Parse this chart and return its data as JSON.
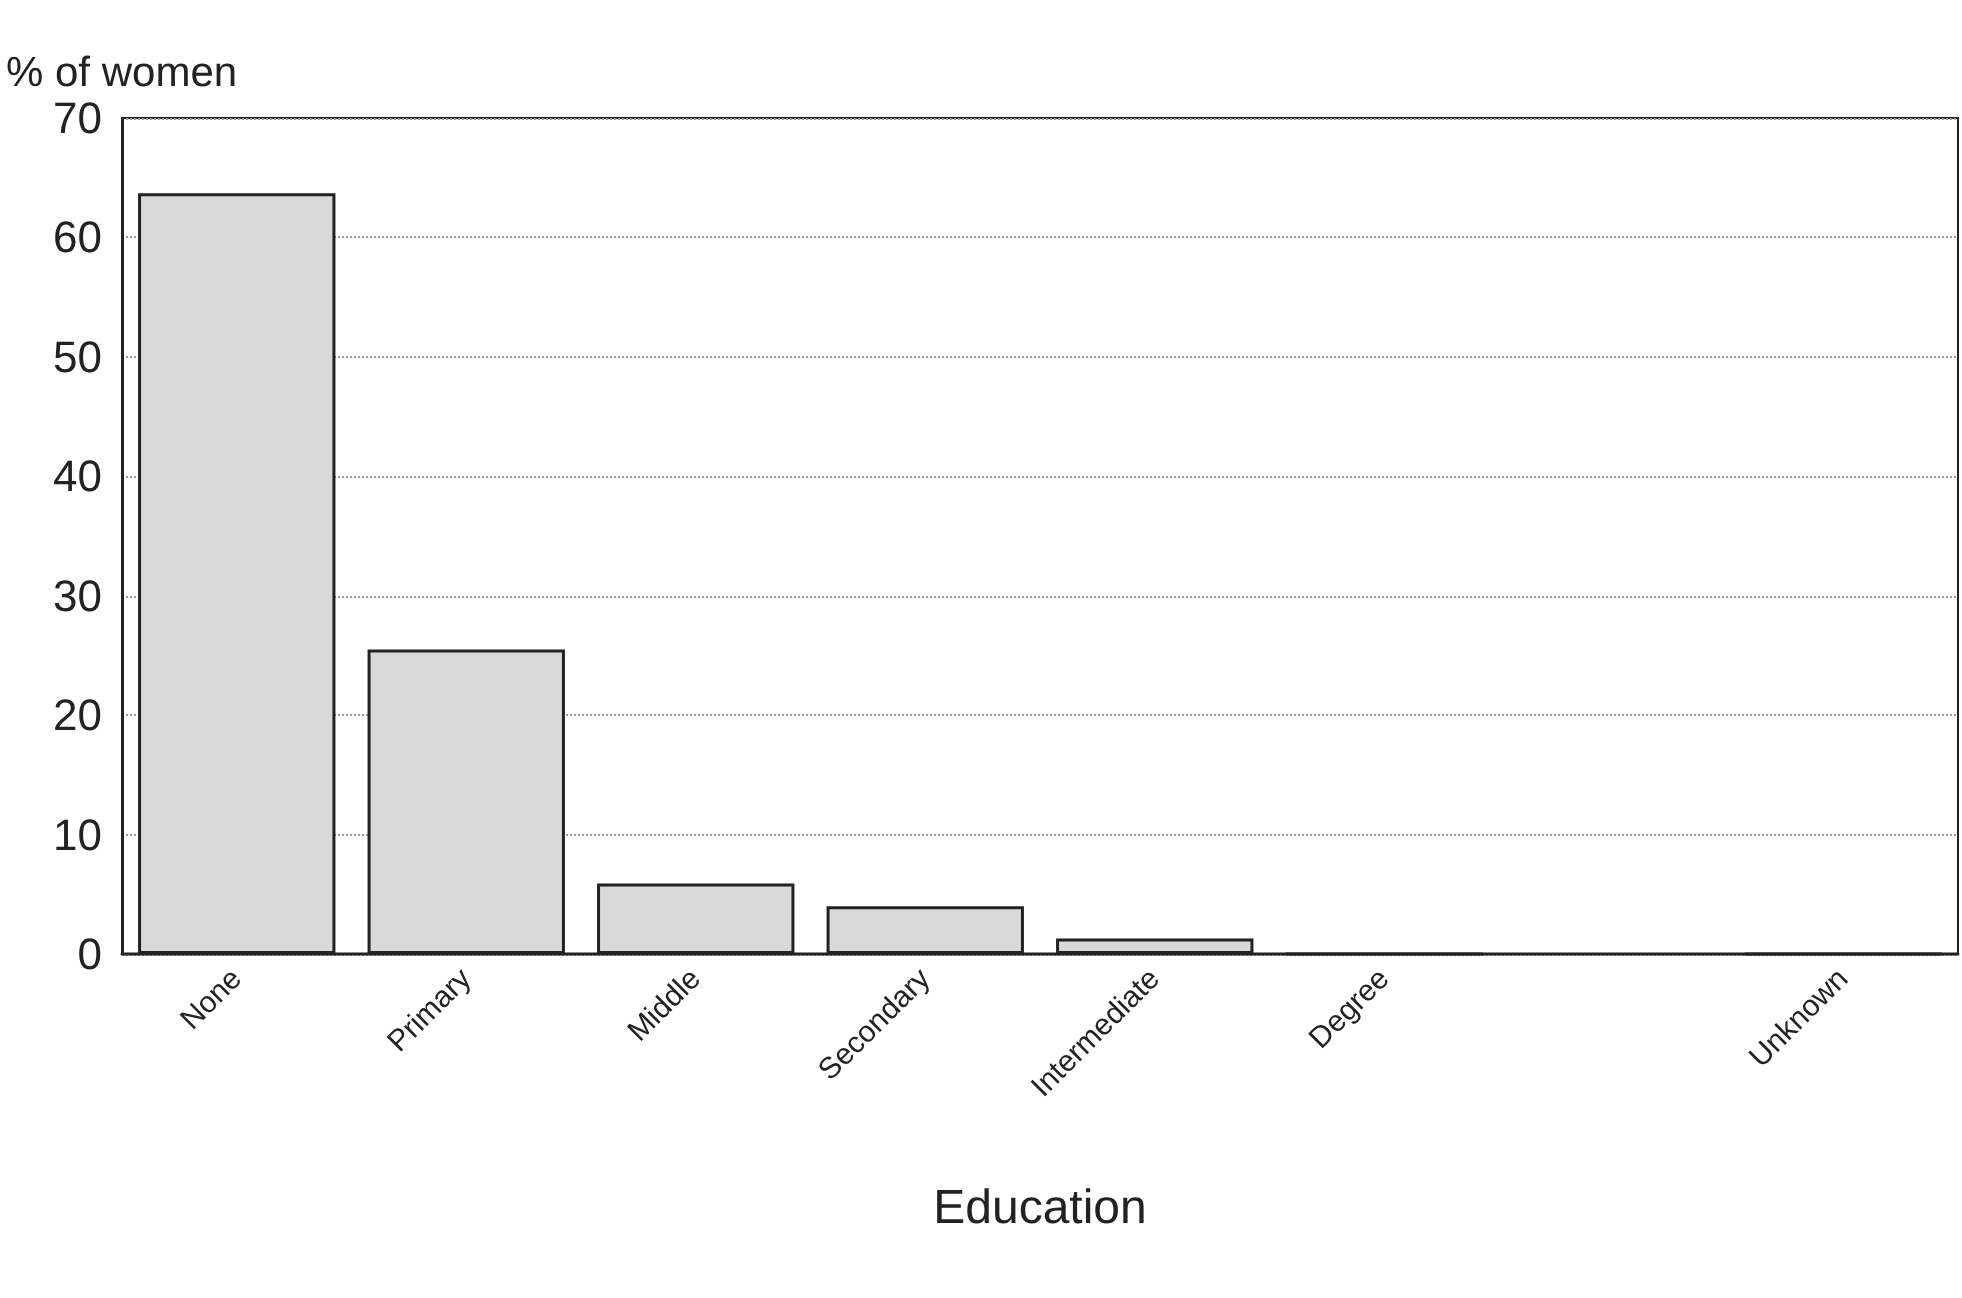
{
  "chart_data": {
    "type": "bar",
    "ylabel": "% of women",
    "xlabel": "Education",
    "categories": [
      "None",
      "Primary",
      "Middle",
      "Secondary",
      "Intermediate",
      "Degree",
      null,
      "Unknown"
    ],
    "values": [
      63.7,
      25.5,
      5.9,
      4.0,
      1.3,
      0,
      null,
      0
    ],
    "color": "#d9d9d9",
    "ylim": [
      0,
      70
    ],
    "yticks": [
      0,
      10,
      20,
      30,
      40,
      50,
      60,
      70
    ],
    "grid": "y"
  }
}
